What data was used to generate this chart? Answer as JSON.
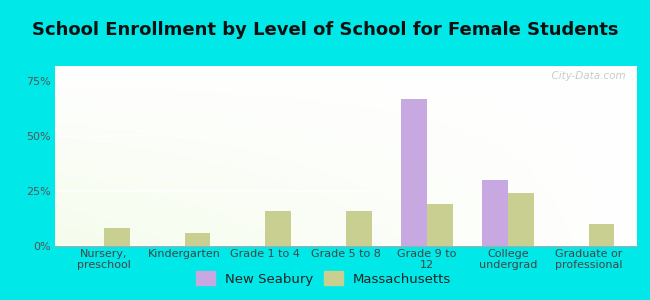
{
  "title": "School Enrollment by Level of School for Female Students",
  "categories": [
    "Nursery,\npreschool",
    "Kindergarten",
    "Grade 1 to 4",
    "Grade 5 to 8",
    "Grade 9 to\n12",
    "College\nundergrad",
    "Graduate or\nprofessional"
  ],
  "new_seabury": [
    0,
    0,
    0,
    0,
    67,
    30,
    0
  ],
  "massachusetts": [
    8,
    6,
    16,
    16,
    19,
    24,
    10
  ],
  "color_seabury": "#c8a8e0",
  "color_massachusetts": "#c8cf90",
  "background_outer": "#00e8e8",
  "yticks": [
    0,
    25,
    50,
    75
  ],
  "ylim": [
    0,
    82
  ],
  "legend_seabury": "New Seabury",
  "legend_massachusetts": "Massachusetts",
  "title_fontsize": 13,
  "tick_fontsize": 8,
  "legend_fontsize": 9.5,
  "watermark": "  City-Data.com"
}
